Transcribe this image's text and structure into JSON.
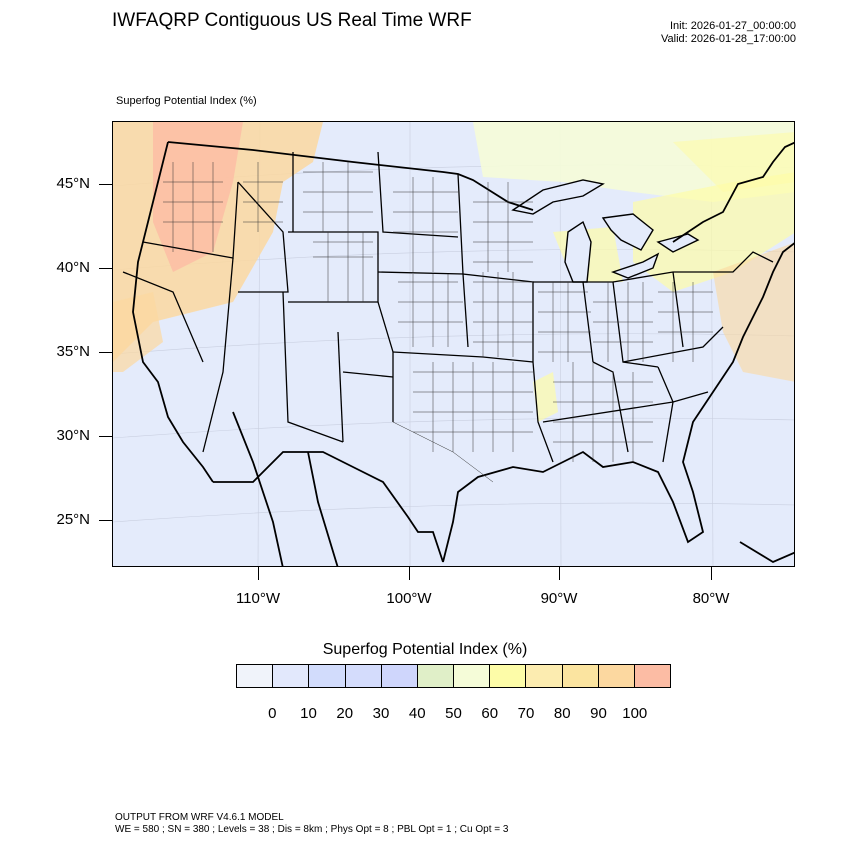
{
  "header": {
    "title": "IWFAQRP Contiguous US Real Time WRF",
    "init": "Init: 2026-01-27_00:00:00",
    "valid": "Valid: 2026-01-28_17:00:00"
  },
  "map": {
    "field_label": "Superfog Potential Index   (%)",
    "lat_labels": [
      "45°N",
      "40°N",
      "35°N",
      "30°N",
      "25°N"
    ],
    "lon_labels": [
      "110°W",
      "100°W",
      "90°W",
      "80°W"
    ],
    "background_color": "#e4ebfb",
    "boundary_color": "#000000"
  },
  "colorbar": {
    "title": "Superfog Potential Index  (%)",
    "colors": [
      "#f0f3fa",
      "#e2e8fc",
      "#d2dcfc",
      "#d4dcfc",
      "#cfd6fc",
      "#e0efc8",
      "#f5fcd8",
      "#fdfca8",
      "#fcecb0",
      "#fbe4a0",
      "#fcd8a0",
      "#fcbca4"
    ],
    "labels": [
      "0",
      "10",
      "20",
      "30",
      "40",
      "50",
      "60",
      "70",
      "80",
      "90",
      "100"
    ]
  },
  "footer": {
    "line1": "OUTPUT FROM WRF V4.6.1 MODEL",
    "line2": "WE = 580 ; SN = 380 ; Levels = 38 ; Dis = 8km ; Phys Opt = 8 ; PBL Opt = 1 ; Cu Opt = 3"
  }
}
